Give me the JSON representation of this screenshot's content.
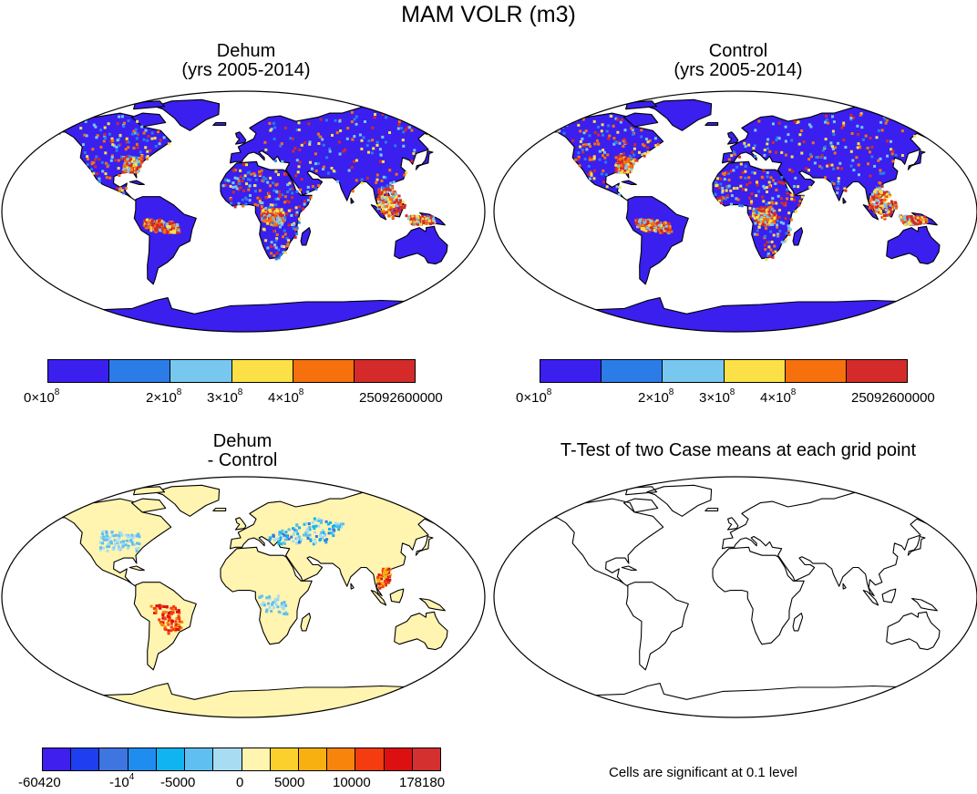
{
  "figure": {
    "title": "MAM VOLR (m3)"
  },
  "panels": {
    "dehum": {
      "title_line1": "Dehum",
      "title_line2": "(yrs 2005-2014)"
    },
    "control": {
      "title_line1": "Control",
      "title_line2": "(yrs 2005-2014)"
    },
    "diff": {
      "title_line1": "Dehum",
      "title_line2": "- Control"
    },
    "ttest": {
      "title": "T-Test of two Case means at each grid point",
      "note": "Cells are significant at 0.1 level"
    }
  },
  "colorbars": {
    "top": {
      "colors": [
        "#3a1fef",
        "#2c7ce8",
        "#78c7ef",
        "#fbe048",
        "#f7700e",
        "#d42a2a"
      ],
      "tick_values": [
        "0",
        "2",
        "3",
        "4",
        "25092600000"
      ],
      "tick_exp": "8",
      "tick_times": "×10"
    },
    "diff": {
      "colors": [
        "#3e1fee",
        "#1f3ef0",
        "#3f75e0",
        "#1f8cf0",
        "#10b4f0",
        "#5fbff0",
        "#a8dcf2",
        "#fff4b0",
        "#fcd02c",
        "#f8b010",
        "#f8840c",
        "#f43c10",
        "#dc1010",
        "#d43030"
      ],
      "tick_labels": [
        "-60420",
        "-10",
        "-5000",
        "0",
        "5000",
        "10000",
        "178180"
      ],
      "tick_exp": "4"
    }
  },
  "map_colors": {
    "ocean": "#ffffff",
    "outline": "#000000",
    "land_base": "#3a1fef",
    "diff_base": "#fff4b0"
  }
}
